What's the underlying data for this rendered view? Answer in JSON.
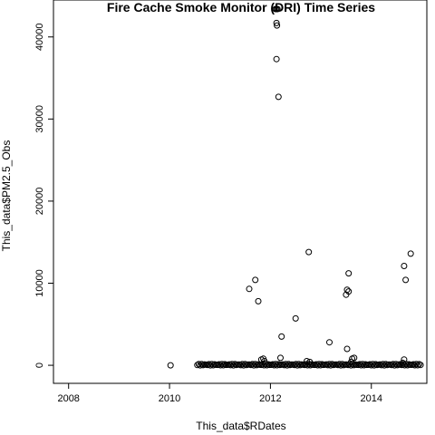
{
  "chart_data": {
    "type": "scatter",
    "title": "Fire Cache Smoke Monitor (DRI) Time Series",
    "xlabel": "This_data$RDates",
    "ylabel": "This_data$PM2.5_Obs",
    "xlim": [
      2007.7,
      2015.1
    ],
    "ylim": [
      -2200,
      44500
    ],
    "x_ticks": [
      2008,
      2010,
      2012,
      2014
    ],
    "y_ticks": [
      0,
      10000,
      20000,
      30000,
      40000
    ],
    "x_tick_labels": [
      "2008",
      "2010",
      "2012",
      "2014"
    ],
    "y_tick_labels": [
      "0",
      "10000",
      "20000",
      "30000",
      "40000"
    ],
    "grid": false,
    "legend": "none",
    "marker": "open-circle",
    "baseline_band": {
      "x_range": [
        2010.55,
        2014.98
      ],
      "y_range": [
        0,
        150
      ],
      "description_values_near": 0
    },
    "points": [
      {
        "x": 2010.02,
        "y": 0
      },
      {
        "x": 2012.1,
        "y": 43400
      },
      {
        "x": 2012.12,
        "y": 43400
      },
      {
        "x": 2012.14,
        "y": 43400
      },
      {
        "x": 2012.12,
        "y": 41700
      },
      {
        "x": 2012.13,
        "y": 41400
      },
      {
        "x": 2012.12,
        "y": 37300
      },
      {
        "x": 2012.16,
        "y": 32700
      },
      {
        "x": 2011.58,
        "y": 9300
      },
      {
        "x": 2011.7,
        "y": 10400
      },
      {
        "x": 2011.76,
        "y": 7800
      },
      {
        "x": 2012.5,
        "y": 5700
      },
      {
        "x": 2012.22,
        "y": 3500
      },
      {
        "x": 2012.2,
        "y": 900
      },
      {
        "x": 2011.82,
        "y": 700
      },
      {
        "x": 2011.86,
        "y": 800
      },
      {
        "x": 2011.88,
        "y": 500
      },
      {
        "x": 2012.76,
        "y": 13800
      },
      {
        "x": 2012.72,
        "y": 500
      },
      {
        "x": 2012.78,
        "y": 400
      },
      {
        "x": 2013.17,
        "y": 2800
      },
      {
        "x": 2013.52,
        "y": 2000
      },
      {
        "x": 2013.5,
        "y": 8600
      },
      {
        "x": 2013.52,
        "y": 9200
      },
      {
        "x": 2013.55,
        "y": 9000
      },
      {
        "x": 2013.55,
        "y": 11200
      },
      {
        "x": 2013.62,
        "y": 800
      },
      {
        "x": 2013.66,
        "y": 900
      },
      {
        "x": 2013.6,
        "y": 400
      },
      {
        "x": 2014.65,
        "y": 12100
      },
      {
        "x": 2014.68,
        "y": 10400
      },
      {
        "x": 2014.78,
        "y": 13600
      },
      {
        "x": 2014.65,
        "y": 700
      },
      {
        "x": 2014.62,
        "y": 300
      }
    ]
  }
}
